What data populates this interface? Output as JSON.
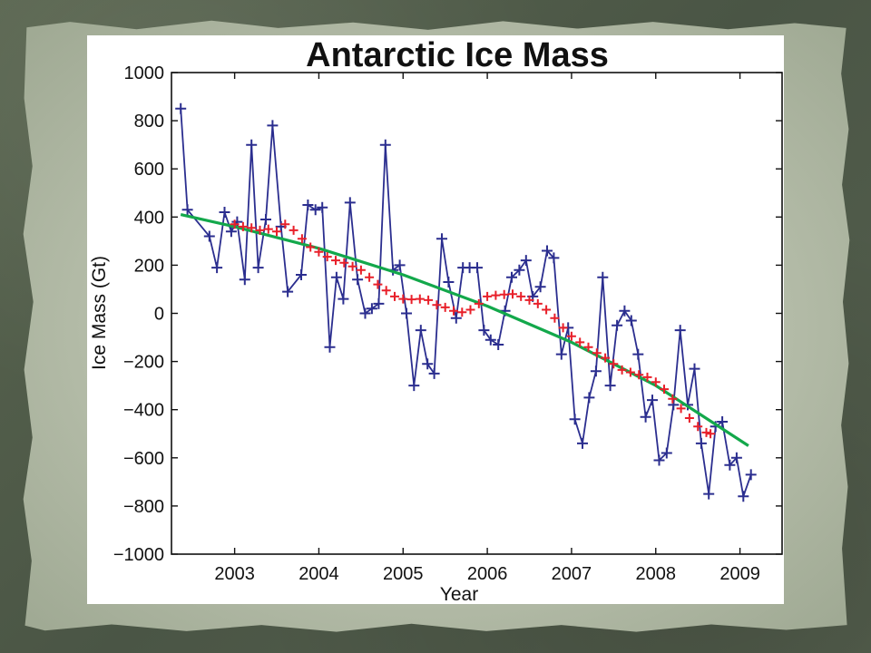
{
  "slide": {
    "background_color": "#4f5a4a",
    "paper_color": "#b8bfae"
  },
  "chart_data": {
    "type": "line",
    "title": "Antarctic Ice Mass",
    "xlabel": "Year",
    "ylabel": "Ice Mass (Gt)",
    "xlim": [
      2002.25,
      2009.5
    ],
    "ylim": [
      -1000,
      1000
    ],
    "x_ticks": [
      2003,
      2004,
      2005,
      2006,
      2007,
      2008,
      2009
    ],
    "x_tick_labels": [
      "2003",
      "2004",
      "2005",
      "2006",
      "2007",
      "2008",
      "2009"
    ],
    "y_ticks": [
      -1000,
      -800,
      -600,
      -400,
      -200,
      0,
      200,
      400,
      600,
      800,
      1000
    ],
    "y_tick_labels": [
      "−1000",
      "−800",
      "−600",
      "−400",
      "−200",
      "0",
      "200",
      "400",
      "600",
      "800",
      "1000"
    ],
    "grid": false,
    "legend": "none",
    "series": [
      {
        "style": "line+plus-markers",
        "color": "#2b2e8f",
        "x": [
          2002.36,
          2002.44,
          2002.7,
          2002.79,
          2002.88,
          2002.96,
          2003.03,
          2003.12,
          2003.2,
          2003.28,
          2003.37,
          2003.45,
          2003.55,
          2003.63,
          2003.79,
          2003.87,
          2003.96,
          2004.04,
          2004.13,
          2004.21,
          2004.29,
          2004.37,
          2004.46,
          2004.55,
          2004.63,
          2004.71,
          2004.79,
          2004.88,
          2004.96,
          2005.04,
          2005.13,
          2005.21,
          2005.29,
          2005.37,
          2005.46,
          2005.54,
          2005.63,
          2005.71,
          2005.79,
          2005.88,
          2005.96,
          2006.04,
          2006.13,
          2006.21,
          2006.29,
          2006.38,
          2006.46,
          2006.54,
          2006.63,
          2006.71,
          2006.79,
          2006.88,
          2006.96,
          2007.04,
          2007.13,
          2007.21,
          2007.29,
          2007.37,
          2007.46,
          2007.54,
          2007.63,
          2007.71,
          2007.79,
          2007.88,
          2007.96,
          2008.04,
          2008.13,
          2008.21,
          2008.29,
          2008.38,
          2008.46,
          2008.54,
          2008.63,
          2008.71,
          2008.79,
          2008.88,
          2008.96,
          2009.04,
          2009.13
        ],
        "y": [
          850,
          430,
          320,
          190,
          420,
          340,
          380,
          140,
          700,
          190,
          390,
          780,
          360,
          90,
          160,
          450,
          430,
          440,
          -140,
          150,
          60,
          460,
          140,
          0,
          20,
          40,
          700,
          180,
          200,
          0,
          -300,
          -70,
          -210,
          -250,
          310,
          130,
          -20,
          190,
          190,
          190,
          -70,
          -110,
          -130,
          10,
          150,
          180,
          220,
          70,
          110,
          260,
          230,
          -170,
          -60,
          -440,
          -540,
          -350,
          -240,
          150,
          -300,
          -50,
          10,
          -30,
          -170,
          -430,
          -360,
          -610,
          -580,
          -380,
          -70,
          -380,
          -230,
          -540,
          -750,
          -470,
          -450,
          -630,
          -600,
          -760,
          -670
        ]
      },
      {
        "style": "plus-markers",
        "color": "#e8202a",
        "x": [
          2003.0,
          2003.1,
          2003.2,
          2003.3,
          2003.4,
          2003.5,
          2003.6,
          2003.7,
          2003.8,
          2003.9,
          2004.0,
          2004.1,
          2004.2,
          2004.3,
          2004.4,
          2004.5,
          2004.6,
          2004.7,
          2004.8,
          2004.9,
          2005.0,
          2005.1,
          2005.2,
          2005.3,
          2005.4,
          2005.5,
          2005.6,
          2005.7,
          2005.8,
          2005.9,
          2006.0,
          2006.1,
          2006.2,
          2006.3,
          2006.4,
          2006.5,
          2006.6,
          2006.7,
          2006.8,
          2006.9,
          2007.0,
          2007.1,
          2007.2,
          2007.3,
          2007.4,
          2007.5,
          2007.6,
          2007.7,
          2007.8,
          2007.9,
          2008.0,
          2008.1,
          2008.2,
          2008.3,
          2008.4,
          2008.5,
          2008.6,
          2008.65
        ],
        "y": [
          370,
          360,
          355,
          345,
          350,
          340,
          370,
          345,
          310,
          275,
          255,
          235,
          220,
          210,
          195,
          180,
          150,
          120,
          95,
          70,
          60,
          58,
          60,
          55,
          35,
          25,
          10,
          5,
          15,
          40,
          70,
          75,
          78,
          80,
          70,
          55,
          40,
          15,
          -20,
          -60,
          -95,
          -120,
          -140,
          -165,
          -185,
          -210,
          -235,
          -245,
          -255,
          -265,
          -285,
          -315,
          -355,
          -395,
          -435,
          -470,
          -495,
          -500
        ]
      },
      {
        "style": "line",
        "color": "#13a84b",
        "x": [
          2002.36,
          2003.0,
          2004.0,
          2005.0,
          2006.0,
          2007.0,
          2008.0,
          2009.1
        ],
        "y": [
          410,
          360,
          270,
          160,
          30,
          -120,
          -300,
          -550
        ]
      }
    ]
  }
}
